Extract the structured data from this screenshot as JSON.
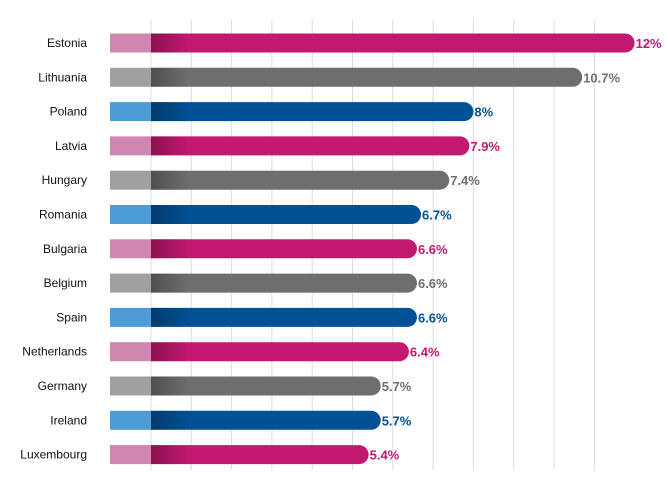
{
  "chart_data": {
    "type": "bar",
    "orientation": "horizontal",
    "title": "",
    "xlabel": "",
    "ylabel": "",
    "grid": true,
    "categories": [
      "Estonia",
      "Lithuania",
      "Poland",
      "Latvia",
      "Hungary",
      "Romania",
      "Bulgaria",
      "Belgium",
      "Spain",
      "Netherlands",
      "Germany",
      "Ireland",
      "Luxembourg"
    ],
    "values": [
      12,
      10.7,
      8,
      7.9,
      7.4,
      6.7,
      6.6,
      6.6,
      6.6,
      6.4,
      5.7,
      5.7,
      5.4
    ],
    "value_labels": [
      "12%",
      "10.7%",
      "8%",
      "7.9%",
      "7.4%",
      "6.7%",
      "6.6%",
      "6.6%",
      "6.6%",
      "6.4%",
      "5.7%",
      "5.7%",
      "5.4%"
    ],
    "xlim": [
      0,
      11
    ],
    "gridline_step": 1,
    "color_cycle": [
      "pink",
      "gray",
      "blue"
    ],
    "colors": {
      "pink": {
        "bar": "#c2186f",
        "stub": "#cf87b0",
        "text": "#c2186f"
      },
      "gray": {
        "bar": "#6e6e6e",
        "stub": "#a0a0a0",
        "text": "#6e6e6e"
      },
      "blue": {
        "bar": "#005195",
        "stub": "#4d9cd8",
        "text": "#005195"
      },
      "grid": "#dcdcdc",
      "label": "#111111"
    }
  }
}
